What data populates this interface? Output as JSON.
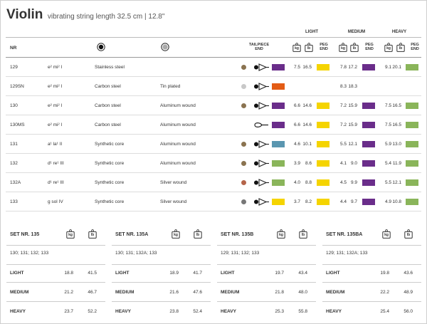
{
  "title": "Violin",
  "subtitle": "vibrating string length 32.5 cm | 12.8\"",
  "groups": {
    "light": "LIGHT",
    "medium": "MEDIUM",
    "heavy": "HEAVY"
  },
  "headers": {
    "nr": "NR",
    "tailpiece_l1": "TAILPIECE",
    "tailpiece_l2": "END",
    "kg": "kg",
    "lb": "lb",
    "peg_l1": "PEG",
    "peg_l2": "END"
  },
  "rows": [
    {
      "nr": "129",
      "note": "e² mi² I",
      "core": "Stainless steel",
      "wound": "",
      "dot": "#8a7350",
      "end": "ball",
      "peg": "#6a2d8a",
      "light_kg": "7.5",
      "light_lb": "16.5",
      "light_c": "#f5d400",
      "medium_kg": "7.8",
      "medium_lb": "17.2",
      "medium_c": "#6a2d8a",
      "heavy_kg": "9.1",
      "heavy_lb": "20.1",
      "heavy_c": "#8ab55a"
    },
    {
      "nr": "129SN",
      "note": "e² mi² I",
      "core": "Carbon steel",
      "wound": "Tin plated",
      "dot": "#c8c8c8",
      "end": "ball",
      "peg": "#e35c15",
      "light_kg": "",
      "light_lb": "",
      "light_c": "",
      "medium_kg": "8.3",
      "medium_lb": "18.3",
      "medium_c": "",
      "heavy_kg": "",
      "heavy_lb": "",
      "heavy_c": ""
    },
    {
      "nr": "130",
      "note": "e² mi² I",
      "core": "Carbon steel",
      "wound": "Aluminum wound",
      "dot": "#8a7350",
      "end": "ball",
      "peg": "#6a2d8a",
      "light_kg": "6.6",
      "light_lb": "14.6",
      "light_c": "#f5d400",
      "medium_kg": "7.2",
      "medium_lb": "15.9",
      "medium_c": "#6a2d8a",
      "heavy_kg": "7.5",
      "heavy_lb": "16.5",
      "heavy_c": "#8ab55a"
    },
    {
      "nr": "130MS",
      "note": "e² mi² I",
      "core": "Carbon steel",
      "wound": "Aluminum wound",
      "dot": "",
      "end": "loop",
      "peg": "#6a2d8a",
      "light_kg": "6.6",
      "light_lb": "14.6",
      "light_c": "#f5d400",
      "medium_kg": "7.2",
      "medium_lb": "15.9",
      "medium_c": "#6a2d8a",
      "heavy_kg": "7.5",
      "heavy_lb": "16.5",
      "heavy_c": "#8ab55a"
    },
    {
      "nr": "131",
      "note": "a¹ la¹ II",
      "core": "Synthetic core",
      "wound": "Aluminum wound",
      "dot": "#8a7350",
      "end": "ball",
      "peg": "#5a96b0",
      "light_kg": "4.6",
      "light_lb": "10.1",
      "light_c": "#f5d400",
      "medium_kg": "5.5",
      "medium_lb": "12.1",
      "medium_c": "#6a2d8a",
      "heavy_kg": "5.9",
      "heavy_lb": "13.0",
      "heavy_c": "#8ab55a"
    },
    {
      "nr": "132",
      "note": "d¹ re¹ III",
      "core": "Synthetic core",
      "wound": "Aluminum wound",
      "dot": "#8a7350",
      "end": "ball",
      "peg": "#8ab55a",
      "light_kg": "3.9",
      "light_lb": "8.6",
      "light_c": "#f5d400",
      "medium_kg": "4.1",
      "medium_lb": "9.0",
      "medium_c": "#6a2d8a",
      "heavy_kg": "5.4",
      "heavy_lb": "11.9",
      "heavy_c": "#8ab55a"
    },
    {
      "nr": "132A",
      "note": "d¹ re¹ III",
      "core": "Synthetic core",
      "wound": "Silver wound",
      "dot": "#b5654a",
      "end": "ball",
      "peg": "#8ab55a",
      "light_kg": "4.0",
      "light_lb": "8.8",
      "light_c": "#f5d400",
      "medium_kg": "4.5",
      "medium_lb": "9.9",
      "medium_c": "#6a2d8a",
      "heavy_kg": "5.5",
      "heavy_lb": "12.1",
      "heavy_c": "#8ab55a"
    },
    {
      "nr": "133",
      "note": "g sol IV",
      "core": "Synthetic core",
      "wound": "Silver wound",
      "dot": "#777777",
      "end": "ball",
      "peg": "#f5d400",
      "light_kg": "3.7",
      "light_lb": "8.2",
      "light_c": "#f5d400",
      "medium_kg": "4.4",
      "medium_lb": "9.7",
      "medium_c": "#6a2d8a",
      "heavy_kg": "4.9",
      "heavy_lb": "10.8",
      "heavy_c": "#8ab55a"
    }
  ],
  "sets": [
    {
      "title": "SET NR. 135",
      "strings": "130; 131; 132; 133",
      "light": "LIGHT",
      "medium": "MEDIUM",
      "heavy": "HEAVY",
      "light_kg": "18.8",
      "light_lb": "41.5",
      "medium_kg": "21.2",
      "medium_lb": "46.7",
      "heavy_kg": "23.7",
      "heavy_lb": "52.2"
    },
    {
      "title": "SET NR. 135A",
      "strings": "130; 131; 132A; 133",
      "light": "LIGHT",
      "medium": "MEDIUM",
      "heavy": "HEAVY",
      "light_kg": "18.9",
      "light_lb": "41.7",
      "medium_kg": "21.6",
      "medium_lb": "47.6",
      "heavy_kg": "23.8",
      "heavy_lb": "52.4"
    },
    {
      "title": "SET NR. 135B",
      "strings": "129; 131; 132; 133",
      "light": "LIGHT",
      "medium": "MEDIUM",
      "heavy": "HEAVY",
      "light_kg": "19.7",
      "light_lb": "43.4",
      "medium_kg": "21.8",
      "medium_lb": "48.0",
      "heavy_kg": "25.3",
      "heavy_lb": "55.8"
    },
    {
      "title": "SET NR. 135BA",
      "strings": "129; 131; 132A; 133",
      "light": "LIGHT",
      "medium": "MEDIUM",
      "heavy": "HEAVY",
      "light_kg": "19.8",
      "light_lb": "43.6",
      "medium_kg": "22.2",
      "medium_lb": "48.9",
      "heavy_kg": "25.4",
      "heavy_lb": "56.0"
    }
  ]
}
